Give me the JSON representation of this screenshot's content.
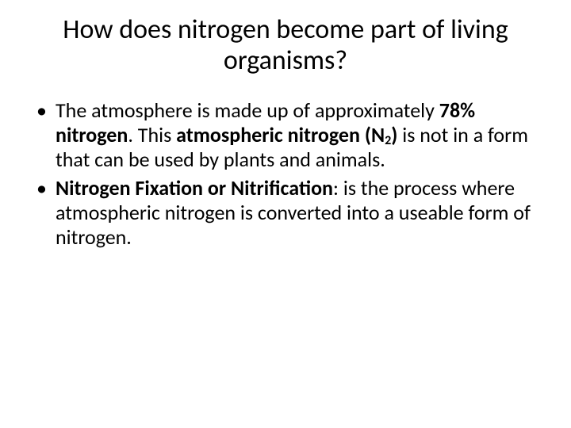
{
  "slide": {
    "background": "#ffffff",
    "text_color": "#000000",
    "title": {
      "text": "How does nitrogen become part of living organisms?",
      "fontsize": 34,
      "weight": 400,
      "align": "center"
    },
    "body": {
      "fontsize": 26,
      "line_height": 1.18,
      "bullets": [
        {
          "pre": "The atmosphere is made up of approximately ",
          "bold_pct": "78% nitrogen",
          "mid1": ". This ",
          "bold_n2_pre": "atmospheric nitrogen (N",
          "bold_n2_sub": "2",
          "bold_n2_post": ")",
          "post": " is not in a form that can be used by plants and animals."
        },
        {
          "bold_lead": "Nitrogen Fixation or Nitrification",
          "post": ": is the process where atmospheric nitrogen is converted into a useable form of nitrogen."
        }
      ]
    }
  }
}
